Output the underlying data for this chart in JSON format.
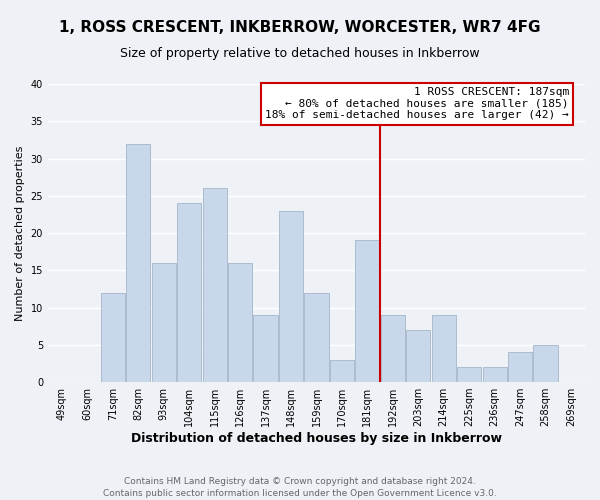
{
  "title": "1, ROSS CRESCENT, INKBERROW, WORCESTER, WR7 4FG",
  "subtitle": "Size of property relative to detached houses in Inkberrow",
  "xlabel": "Distribution of detached houses by size in Inkberrow",
  "ylabel": "Number of detached properties",
  "bar_labels": [
    "49sqm",
    "60sqm",
    "71sqm",
    "82sqm",
    "93sqm",
    "104sqm",
    "115sqm",
    "126sqm",
    "137sqm",
    "148sqm",
    "159sqm",
    "170sqm",
    "181sqm",
    "192sqm",
    "203sqm",
    "214sqm",
    "225sqm",
    "236sqm",
    "247sqm",
    "258sqm",
    "269sqm"
  ],
  "bar_values": [
    0,
    0,
    12,
    32,
    16,
    24,
    26,
    16,
    9,
    23,
    12,
    3,
    19,
    9,
    7,
    9,
    2,
    2,
    4,
    5,
    0
  ],
  "bar_color": "#c8d8ea",
  "bar_edgecolor": "#aabcce",
  "vline_index": 13,
  "vline_color": "#cc0000",
  "annotation_text": "1 ROSS CRESCENT: 187sqm\n← 80% of detached houses are smaller (185)\n18% of semi-detached houses are larger (42) →",
  "annotation_box_facecolor": "#ffffff",
  "annotation_box_edgecolor": "#cc0000",
  "ylim": [
    0,
    40
  ],
  "yticks": [
    0,
    5,
    10,
    15,
    20,
    25,
    30,
    35,
    40
  ],
  "footer_text": "Contains HM Land Registry data © Crown copyright and database right 2024.\nContains public sector information licensed under the Open Government Licence v3.0.",
  "background_color": "#eef2f7",
  "grid_color": "#ffffff",
  "title_fontsize": 11,
  "subtitle_fontsize": 9,
  "xlabel_fontsize": 9,
  "ylabel_fontsize": 8,
  "tick_fontsize": 7,
  "annotation_fontsize": 8,
  "footer_fontsize": 6.5
}
